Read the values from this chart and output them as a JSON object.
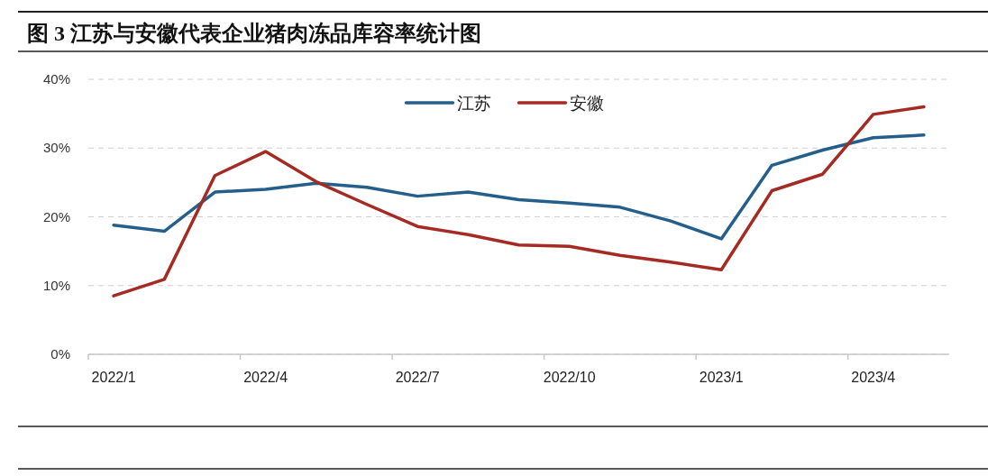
{
  "chart_data": {
    "type": "line",
    "title": "图 3 江苏与安徽代表企业猪肉冻品库容率统计图",
    "categories": [
      "2022/1",
      null,
      null,
      "2022/4",
      null,
      null,
      "2022/7",
      null,
      null,
      "2022/10",
      null,
      null,
      "2023/1",
      null,
      null,
      "2023/4",
      null
    ],
    "series": [
      {
        "name": "江苏",
        "color": "#245f8c",
        "values": [
          18.8,
          17.9,
          23.6,
          24.0,
          24.9,
          24.3,
          23.0,
          23.6,
          22.5,
          22.0,
          21.4,
          19.4,
          16.8,
          27.5,
          29.7,
          31.5,
          31.9
        ]
      },
      {
        "name": "安徽",
        "color": "#a52a22",
        "values": [
          8.5,
          10.9,
          26.0,
          29.5,
          25.1,
          21.8,
          18.6,
          17.4,
          15.9,
          15.7,
          14.4,
          13.4,
          12.3,
          23.8,
          26.2,
          34.9,
          36.0
        ]
      }
    ],
    "ylim": [
      0,
      40
    ],
    "yticks": [
      {
        "value": 0,
        "label": "0%"
      },
      {
        "value": 10,
        "label": "10%"
      },
      {
        "value": 20,
        "label": "20%"
      },
      {
        "value": 30,
        "label": "30%"
      },
      {
        "value": 40,
        "label": "40%"
      }
    ],
    "grid": "y",
    "legend": "top",
    "line_style": "solid",
    "marker": "none"
  }
}
